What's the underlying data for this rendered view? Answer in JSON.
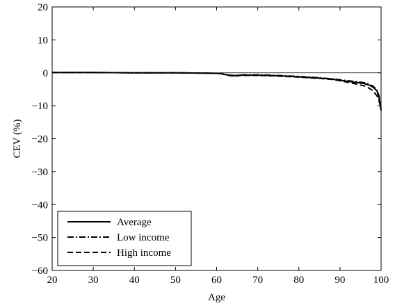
{
  "chart_data": {
    "type": "line",
    "xlabel": "Age",
    "ylabel": "CEV (%)",
    "xlim": [
      20,
      100
    ],
    "ylim": [
      -60,
      20
    ],
    "xticks": [
      20,
      30,
      40,
      50,
      60,
      70,
      80,
      90,
      100
    ],
    "yticks": [
      20,
      10,
      0,
      -10,
      -20,
      -30,
      -40,
      -50,
      -60
    ],
    "ytick_labels": [
      "20",
      "10",
      "0",
      "−10",
      "−20",
      "−30",
      "−40",
      "−50",
      "−60"
    ],
    "grid": false,
    "reference_line_y": 0,
    "legend_position": "bottom-left",
    "series": [
      {
        "name": "Average",
        "style": "solid",
        "points": [
          [
            20,
            0.1
          ],
          [
            30,
            0.1
          ],
          [
            40,
            0.0
          ],
          [
            50,
            0.0
          ],
          [
            58,
            -0.1
          ],
          [
            61,
            -0.2
          ],
          [
            62,
            -0.5
          ],
          [
            64,
            -0.9
          ],
          [
            66,
            -0.7
          ],
          [
            70,
            -0.7
          ],
          [
            75,
            -0.9
          ],
          [
            80,
            -1.2
          ],
          [
            85,
            -1.6
          ],
          [
            88,
            -1.9
          ],
          [
            90,
            -2.3
          ],
          [
            92,
            -2.6
          ],
          [
            94,
            -2.9
          ],
          [
            96,
            -3.3
          ],
          [
            97,
            -3.7
          ],
          [
            98,
            -4.3
          ],
          [
            99,
            -5.5
          ],
          [
            99.5,
            -7.5
          ],
          [
            100,
            -11.5
          ]
        ]
      },
      {
        "name": "Low income",
        "style": "dashdot",
        "points": [
          [
            20,
            0.1
          ],
          [
            30,
            0.1
          ],
          [
            40,
            0.0
          ],
          [
            50,
            0.0
          ],
          [
            58,
            -0.1
          ],
          [
            61,
            -0.2
          ],
          [
            62,
            -0.5
          ],
          [
            64,
            -0.8
          ],
          [
            66,
            -0.6
          ],
          [
            70,
            -0.6
          ],
          [
            75,
            -0.8
          ],
          [
            80,
            -1.1
          ],
          [
            85,
            -1.5
          ],
          [
            88,
            -1.8
          ],
          [
            90,
            -2.1
          ],
          [
            92,
            -2.4
          ],
          [
            94,
            -2.7
          ],
          [
            96,
            -3.0
          ],
          [
            97,
            -3.4
          ],
          [
            98,
            -4.0
          ],
          [
            99,
            -5.2
          ],
          [
            99.5,
            -7.0
          ],
          [
            100,
            -11.0
          ]
        ]
      },
      {
        "name": "High income",
        "style": "dashed",
        "points": [
          [
            20,
            0.1
          ],
          [
            30,
            0.1
          ],
          [
            40,
            0.0
          ],
          [
            50,
            0.0
          ],
          [
            58,
            -0.1
          ],
          [
            61,
            -0.2
          ],
          [
            62,
            -0.6
          ],
          [
            64,
            -1.0
          ],
          [
            66,
            -0.8
          ],
          [
            70,
            -0.8
          ],
          [
            75,
            -1.0
          ],
          [
            80,
            -1.3
          ],
          [
            85,
            -1.7
          ],
          [
            88,
            -2.0
          ],
          [
            90,
            -2.4
          ],
          [
            92,
            -2.9
          ],
          [
            94,
            -3.4
          ],
          [
            96,
            -4.0
          ],
          [
            97,
            -4.6
          ],
          [
            98,
            -5.4
          ],
          [
            99,
            -7.0
          ],
          [
            99.5,
            -8.5
          ],
          [
            100,
            -11.0
          ]
        ]
      }
    ]
  }
}
